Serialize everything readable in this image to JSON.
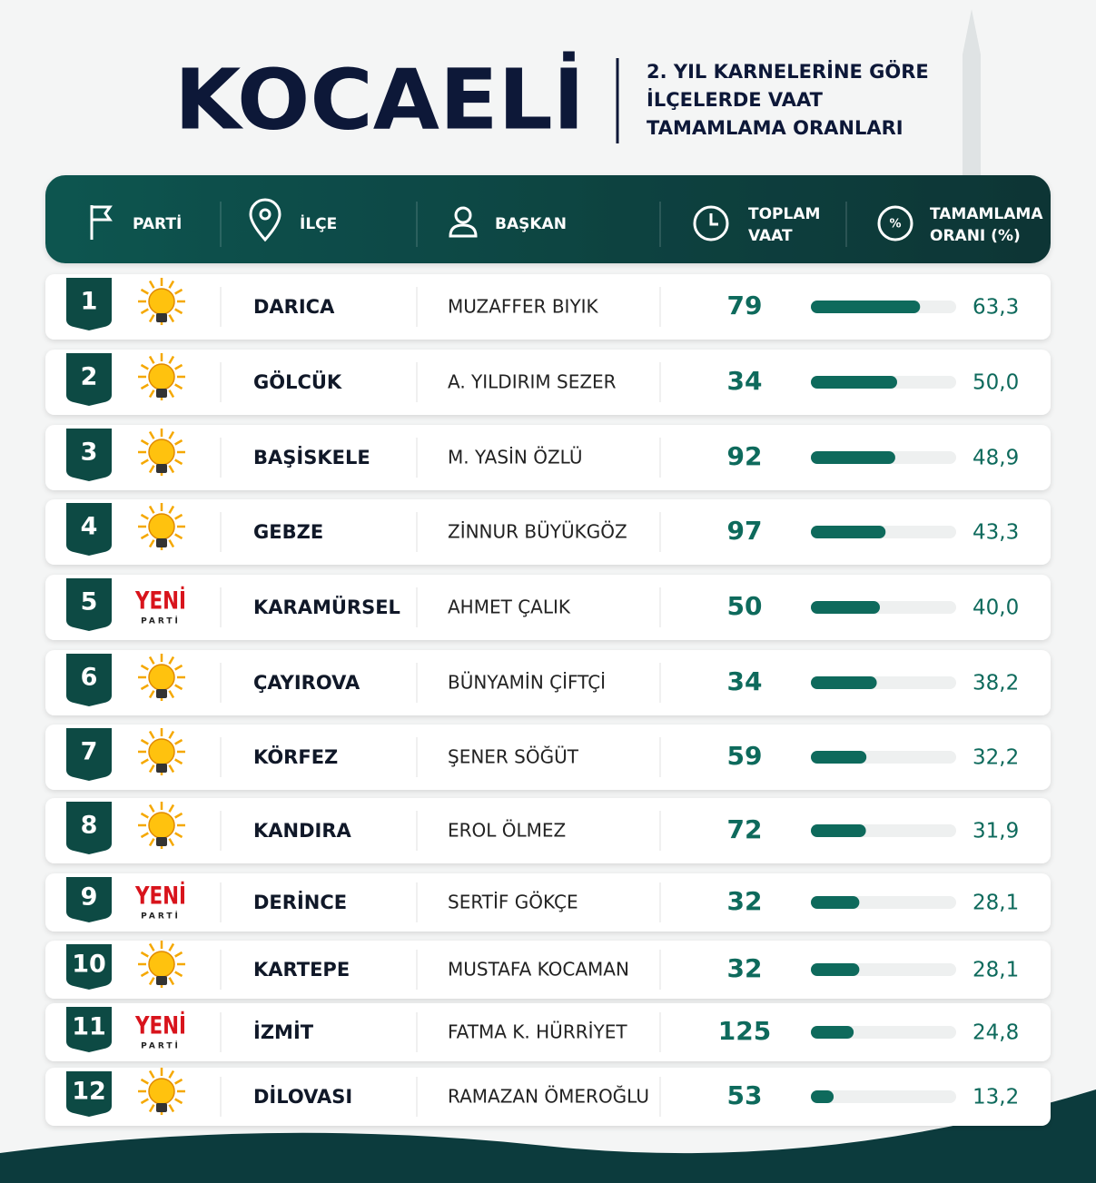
{
  "header": {
    "title": "KOCAELİ",
    "subtitle": [
      "2. YIL KARNELERİNE GÖRE",
      "İLÇELERDE VAAT",
      "TAMAMLAMA ORANLARI"
    ]
  },
  "table": {
    "columns": [
      [
        "PARTİ"
      ],
      [
        "İLÇE"
      ],
      [
        "BAŞKAN"
      ],
      [
        "TOPLAM",
        "VAAT"
      ],
      [
        "TAMAMLAMA",
        "ORANI (%)"
      ]
    ],
    "rows": [
      {
        "rank": "1",
        "party_logo": null,
        "district": "DARICA",
        "mayor": "MUZAFFER BIYIK",
        "promises": 79,
        "rate": {
          "value": 63.3,
          "label": "63,3"
        }
      },
      {
        "rank": "2",
        "party_logo": null,
        "district": "GÖLCÜK",
        "mayor": "A. YILDIRIM SEZER",
        "promises": 34,
        "rate": {
          "value": 50.0,
          "label": "50,0"
        }
      },
      {
        "rank": "3",
        "party_logo": null,
        "district": "BAŞİSKELE",
        "mayor": "M. YASİN ÖZLÜ",
        "promises": 92,
        "rate": {
          "value": 48.9,
          "label": "48,9"
        }
      },
      {
        "rank": "4",
        "party_logo": null,
        "district": "GEBZE",
        "mayor": "ZİNNUR BÜYÜKGÖZ",
        "promises": 97,
        "rate": {
          "value": 43.3,
          "label": "43,3"
        }
      },
      {
        "rank": "5",
        "party_logo": {
          "name": "YENİ",
          "sub": "PARTİ"
        },
        "district": "KARAMÜRSEL",
        "mayor": "AHMET ÇALIK",
        "promises": 50,
        "rate": {
          "value": 40.0,
          "label": "40,0"
        }
      },
      {
        "rank": "6",
        "party_logo": null,
        "district": "ÇAYIROVA",
        "mayor": "BÜNYAMİN ÇİFTÇİ",
        "promises": 34,
        "rate": {
          "value": 38.2,
          "label": "38,2"
        }
      },
      {
        "rank": "7",
        "party_logo": null,
        "district": "KÖRFEZ",
        "mayor": "ŞENER SÖĞÜT",
        "promises": 59,
        "rate": {
          "value": 32.2,
          "label": "32,2"
        }
      },
      {
        "rank": "8",
        "party_logo": null,
        "district": "KANDIRA",
        "mayor": "EROL ÖLMEZ",
        "promises": 72,
        "rate": {
          "value": 31.9,
          "label": "31,9"
        }
      },
      {
        "rank": "9",
        "party_logo": {
          "name": "YENİ",
          "sub": "PARTİ"
        },
        "district": "DERİNCE",
        "mayor": "SERTİF GÖKÇE",
        "promises": 32,
        "rate": {
          "value": 28.1,
          "label": "28,1"
        }
      },
      {
        "rank": "10",
        "party_logo": null,
        "district": "KARTEPE",
        "mayor": "MUSTAFA KOCAMAN",
        "promises": 32,
        "rate": {
          "value": 28.1,
          "label": "28,1"
        }
      },
      {
        "rank": "11",
        "party_logo": {
          "name": "YENİ",
          "sub": "PARTİ"
        },
        "district": "İZMİT",
        "mayor": "FATMA K. HÜRRİYET",
        "promises": 125,
        "rate": {
          "value": 24.8,
          "label": "24,8"
        }
      },
      {
        "rank": "12",
        "party_logo": null,
        "district": "DİLOVASI",
        "mayor": "RAMAZAN ÖMEROĞLU",
        "promises": 53,
        "rate": {
          "value": 13.2,
          "label": "13,2"
        }
      }
    ]
  }
}
